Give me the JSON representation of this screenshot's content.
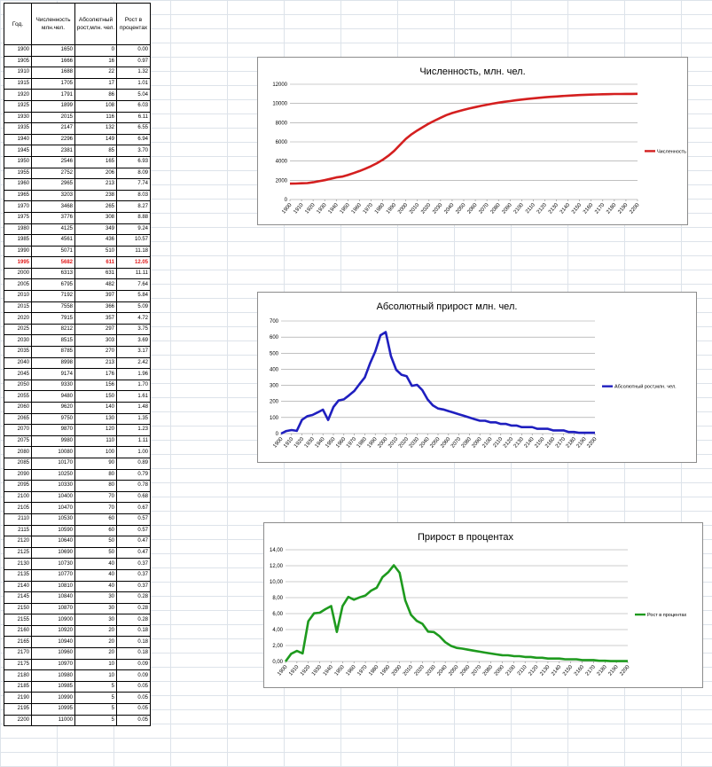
{
  "table": {
    "headers": [
      "Год.",
      "Численность млн.чел.",
      "Абсолютный рост,млн. чел.",
      "Рост в процентах"
    ],
    "highlight_year": "1995",
    "rows": [
      [
        "1900",
        "1650",
        "0",
        "0.00"
      ],
      [
        "1905",
        "1666",
        "16",
        "0.97"
      ],
      [
        "1910",
        "1688",
        "22",
        "1.32"
      ],
      [
        "1915",
        "1705",
        "17",
        "1.01"
      ],
      [
        "1920",
        "1791",
        "86",
        "5.04"
      ],
      [
        "1925",
        "1899",
        "108",
        "6.03"
      ],
      [
        "1930",
        "2015",
        "116",
        "6.11"
      ],
      [
        "1935",
        "2147",
        "132",
        "6.55"
      ],
      [
        "1940",
        "2296",
        "149",
        "6.94"
      ],
      [
        "1945",
        "2381",
        "85",
        "3.70"
      ],
      [
        "1950",
        "2546",
        "165",
        "6.93"
      ],
      [
        "1955",
        "2752",
        "206",
        "8.09"
      ],
      [
        "1960",
        "2965",
        "213",
        "7.74"
      ],
      [
        "1965",
        "3203",
        "238",
        "8.03"
      ],
      [
        "1970",
        "3468",
        "265",
        "8.27"
      ],
      [
        "1975",
        "3776",
        "308",
        "8.88"
      ],
      [
        "1980",
        "4125",
        "349",
        "9.24"
      ],
      [
        "1985",
        "4561",
        "436",
        "10.57"
      ],
      [
        "1990",
        "5071",
        "510",
        "11.18"
      ],
      [
        "1995",
        "5682",
        "611",
        "12.05"
      ],
      [
        "2000",
        "6313",
        "631",
        "11.11"
      ],
      [
        "2005",
        "6795",
        "482",
        "7.64"
      ],
      [
        "2010",
        "7192",
        "397",
        "5.84"
      ],
      [
        "2015",
        "7558",
        "366",
        "5.09"
      ],
      [
        "2020",
        "7915",
        "357",
        "4.72"
      ],
      [
        "2025",
        "8212",
        "297",
        "3.75"
      ],
      [
        "2030",
        "8515",
        "303",
        "3.69"
      ],
      [
        "2035",
        "8785",
        "270",
        "3.17"
      ],
      [
        "2040",
        "8998",
        "213",
        "2.42"
      ],
      [
        "2045",
        "9174",
        "176",
        "1.96"
      ],
      [
        "2050",
        "9330",
        "156",
        "1.70"
      ],
      [
        "2055",
        "9480",
        "150",
        "1.61"
      ],
      [
        "2060",
        "9620",
        "140",
        "1.48"
      ],
      [
        "2065",
        "9750",
        "130",
        "1.35"
      ],
      [
        "2070",
        "9870",
        "120",
        "1.23"
      ],
      [
        "2075",
        "9980",
        "110",
        "1.11"
      ],
      [
        "2080",
        "10080",
        "100",
        "1.00"
      ],
      [
        "2085",
        "10170",
        "90",
        "0.89"
      ],
      [
        "2090",
        "10250",
        "80",
        "0.79"
      ],
      [
        "2095",
        "10330",
        "80",
        "0.78"
      ],
      [
        "2100",
        "10400",
        "70",
        "0.68"
      ],
      [
        "2105",
        "10470",
        "70",
        "0.67"
      ],
      [
        "2110",
        "10530",
        "60",
        "0.57"
      ],
      [
        "2115",
        "10590",
        "60",
        "0.57"
      ],
      [
        "2120",
        "10640",
        "50",
        "0.47"
      ],
      [
        "2125",
        "10690",
        "50",
        "0.47"
      ],
      [
        "2130",
        "10730",
        "40",
        "0.37"
      ],
      [
        "2135",
        "10770",
        "40",
        "0.37"
      ],
      [
        "2140",
        "10810",
        "40",
        "0.37"
      ],
      [
        "2145",
        "10840",
        "30",
        "0.28"
      ],
      [
        "2150",
        "10870",
        "30",
        "0.28"
      ],
      [
        "2155",
        "10900",
        "30",
        "0.28"
      ],
      [
        "2160",
        "10920",
        "20",
        "0.18"
      ],
      [
        "2165",
        "10940",
        "20",
        "0.18"
      ],
      [
        "2170",
        "10960",
        "20",
        "0.18"
      ],
      [
        "2175",
        "10970",
        "10",
        "0.09"
      ],
      [
        "2180",
        "10980",
        "10",
        "0.09"
      ],
      [
        "2185",
        "10985",
        "5",
        "0.05"
      ],
      [
        "2190",
        "10990",
        "5",
        "0.05"
      ],
      [
        "2195",
        "10995",
        "5",
        "0.05"
      ],
      [
        "2200",
        "11000",
        "5",
        "0.05"
      ]
    ]
  },
  "chart_data": [
    {
      "type": "line",
      "title": "Численность, млн. чел.",
      "series_name": "Численность",
      "color": "#d41f1f",
      "column": 1,
      "ylim": [
        0,
        12000
      ],
      "yticks": [
        "0",
        "2000",
        "4000",
        "6000",
        "8000",
        "10000",
        "12000"
      ],
      "legend": "right",
      "grid": true
    },
    {
      "type": "line",
      "title": "Абсолютный прирост  млн. чел.",
      "series_name": "Абсолютный рост,млн. чел.",
      "color": "#1f1fbf",
      "column": 2,
      "ylim": [
        0,
        700
      ],
      "yticks": [
        "0",
        "100",
        "200",
        "300",
        "400",
        "500",
        "600",
        "700"
      ],
      "legend": "right",
      "grid": true
    },
    {
      "type": "line",
      "title": "Прирост в процентах",
      "series_name": "Рост в процентах",
      "color": "#1e9a1e",
      "column": 3,
      "ylim": [
        0,
        14
      ],
      "yticks": [
        "0,00",
        "2,00",
        "4,00",
        "6,00",
        "8,00",
        "10,00",
        "12,00",
        "14,00"
      ],
      "legend": "right",
      "grid": true
    }
  ],
  "xticks": [
    "1900",
    "1910",
    "1920",
    "1930",
    "1940",
    "1950",
    "1960",
    "1970",
    "1980",
    "1990",
    "2000",
    "2010",
    "2020",
    "2030",
    "2040",
    "2050",
    "2060",
    "2070",
    "2080",
    "2090",
    "2100",
    "2110",
    "2120",
    "2130",
    "2140",
    "2150",
    "2160",
    "2170",
    "2180",
    "2190",
    "2200"
  ]
}
